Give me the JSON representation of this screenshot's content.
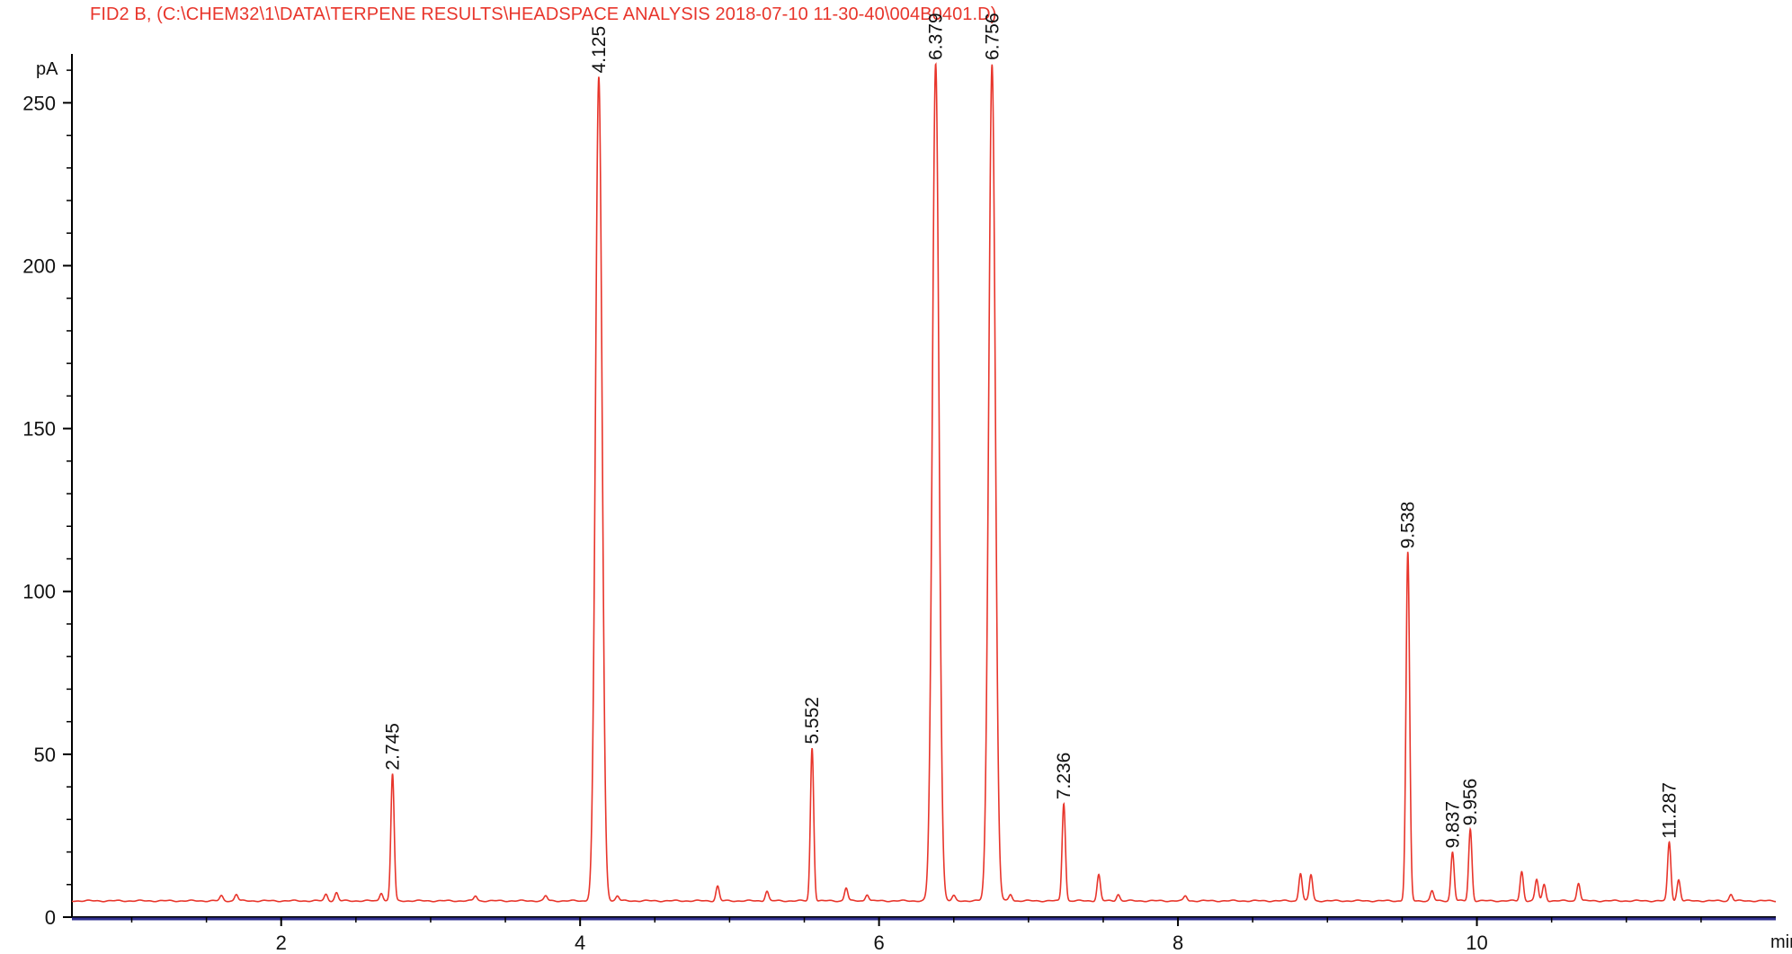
{
  "title": "FID2 B,  (C:\\CHEM32\\1\\DATA\\TERPENE RESULTS\\HEADSPACE ANALYSIS 2018-07-10 11-30-40\\004B0401.D)",
  "colors": {
    "trace": "#e8352b",
    "title": "#e8352b",
    "axis": "#000000",
    "baseline": "#2f2f8f"
  },
  "chart_data": {
    "type": "line",
    "title": "FID2 B,  (C:\\CHEM32\\1\\DATA\\TERPENE RESULTS\\HEADSPACE ANALYSIS 2018-07-10 11-30-40\\004B0401.D)",
    "xlabel": "min",
    "ylabel": "pA",
    "xlim": [
      0.6,
      12.0
    ],
    "ylim": [
      0,
      265
    ],
    "xticks": [
      "2",
      "4",
      "6",
      "8",
      "10"
    ],
    "yticks": [
      "0",
      "50",
      "100",
      "150",
      "200",
      "250"
    ],
    "baseline": 5,
    "peaks": [
      {
        "rt": "2.745",
        "x": 2.745,
        "height": 44,
        "labeled": true
      },
      {
        "rt": "4.125",
        "x": 4.125,
        "height": 258,
        "labeled": true
      },
      {
        "rt": "5.552",
        "x": 5.552,
        "height": 52,
        "labeled": true
      },
      {
        "rt": "6.379",
        "x": 6.379,
        "height": 262,
        "labeled": true
      },
      {
        "rt": "6.756",
        "x": 6.756,
        "height": 262,
        "labeled": true
      },
      {
        "rt": "7.236",
        "x": 7.236,
        "height": 35,
        "labeled": true
      },
      {
        "rt": "9.538",
        "x": 9.538,
        "height": 112,
        "labeled": true
      },
      {
        "rt": "9.837",
        "x": 9.837,
        "height": 20,
        "labeled": true
      },
      {
        "rt": "9.956",
        "x": 9.956,
        "height": 27,
        "labeled": true
      },
      {
        "rt": "11.287",
        "x": 11.287,
        "height": 23,
        "labeled": true
      },
      {
        "x": 1.6,
        "height": 6.5
      },
      {
        "x": 1.7,
        "height": 7
      },
      {
        "x": 2.3,
        "height": 7
      },
      {
        "x": 2.37,
        "height": 7.5
      },
      {
        "x": 2.67,
        "height": 7.5
      },
      {
        "x": 3.3,
        "height": 6.5
      },
      {
        "x": 3.77,
        "height": 6.5
      },
      {
        "x": 4.25,
        "height": 6.5
      },
      {
        "x": 4.92,
        "height": 9.5
      },
      {
        "x": 5.25,
        "height": 8
      },
      {
        "x": 5.78,
        "height": 9
      },
      {
        "x": 5.92,
        "height": 7
      },
      {
        "x": 6.5,
        "height": 6.5
      },
      {
        "x": 6.88,
        "height": 7
      },
      {
        "x": 7.47,
        "height": 13
      },
      {
        "x": 7.6,
        "height": 7
      },
      {
        "x": 8.05,
        "height": 6.5
      },
      {
        "x": 8.82,
        "height": 13.5
      },
      {
        "x": 8.89,
        "height": 13
      },
      {
        "x": 9.7,
        "height": 8
      },
      {
        "x": 10.3,
        "height": 14
      },
      {
        "x": 10.4,
        "height": 11.5
      },
      {
        "x": 10.45,
        "height": 10
      },
      {
        "x": 10.68,
        "height": 10.5
      },
      {
        "x": 11.35,
        "height": 11.5
      },
      {
        "x": 11.7,
        "height": 7
      }
    ]
  }
}
